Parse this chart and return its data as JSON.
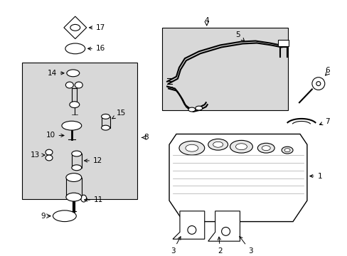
{
  "bg_color": "#ffffff",
  "line_color": "#000000",
  "box_fill": "#d8d8d8",
  "fig_width": 4.89,
  "fig_height": 3.6,
  "dpi": 100,
  "label_fs": 7.5,
  "arrow_lw": 0.7
}
